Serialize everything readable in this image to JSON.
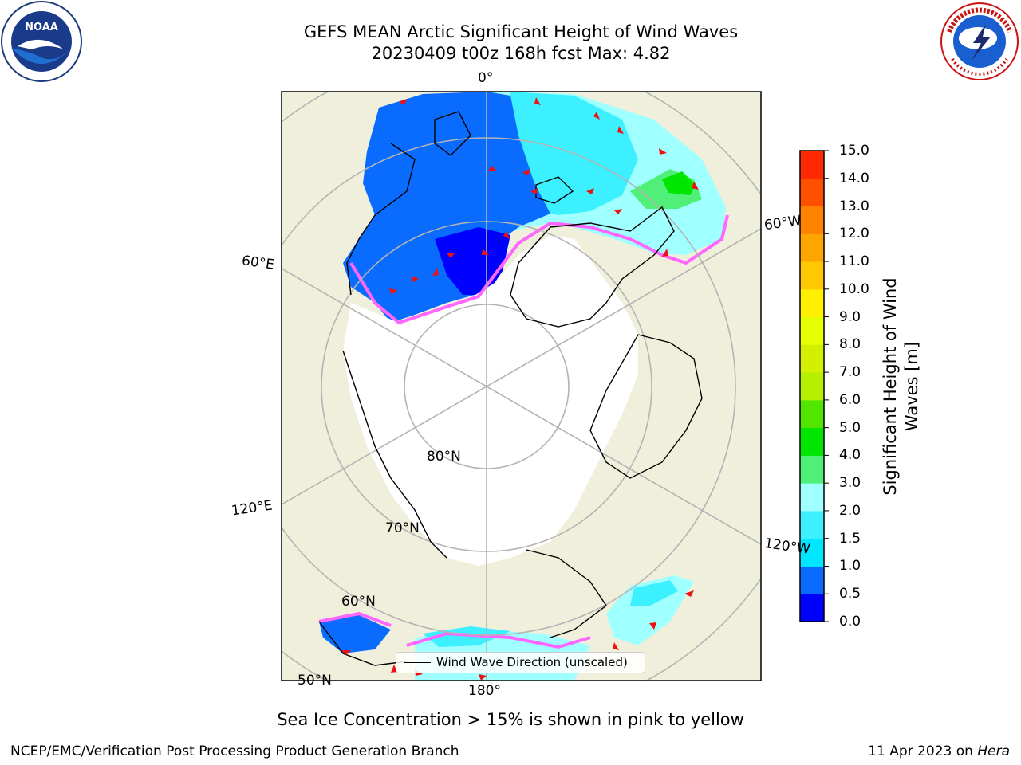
{
  "title": {
    "line1": "GEFS MEAN Arctic Significant Height of Wind Waves",
    "line2": "20230409 t00z 168h fcst   Max: 4.82"
  },
  "map": {
    "projection": "north-polar-stereographic",
    "land_color": "#efefdc",
    "ocean_no_data_color": "#ffffff",
    "gridline_color": "#b4b4b4",
    "coastline_color": "#000000",
    "ice_edge_colors": [
      "#ff66ff",
      "#ff9933",
      "#ffcc00"
    ],
    "arrow_color": "#ee1111",
    "graticule_labels": {
      "lon_0": "0°",
      "lon_60e": "60°E",
      "lon_60w": "60°W",
      "lon_120e": "120°E",
      "lon_120w": "120°W",
      "lon_180": "180°",
      "lat_80": "80°N",
      "lat_70": "70°N",
      "lat_60": "60°N",
      "lat_50": "50°N"
    }
  },
  "colorbar": {
    "label": "Significant Height of Wind Waves [m]",
    "label_line1": "Significant Height of Wind",
    "label_line2": "Waves [m]",
    "ticks": [
      "0.0",
      "0.5",
      "1.0",
      "1.5",
      "2.0",
      "3.0",
      "4.0",
      "5.0",
      "6.0",
      "7.0",
      "8.0",
      "9.0",
      "10.0",
      "11.0",
      "12.0",
      "13.0",
      "14.0",
      "15.0"
    ],
    "colors": [
      "#0000ff",
      "#0a6cff",
      "#00e6ff",
      "#3cf0ff",
      "#a0ffff",
      "#50f078",
      "#00e600",
      "#50e600",
      "#b4f000",
      "#d2f000",
      "#e6ff00",
      "#fff000",
      "#ffc800",
      "#ffa500",
      "#ff8200",
      "#ff5000",
      "#ff2800"
    ]
  },
  "legend": {
    "label": "Wind Wave Direction (unscaled)"
  },
  "subtitle": "Sea Ice Concentration > 15% is shown in pink to yellow",
  "footer": {
    "left": "NCEP/EMC/Verification Post Processing Product Generation Branch",
    "right_date": "11 Apr 2023 on",
    "right_host": "Hera"
  },
  "logos": {
    "left": "NOAA",
    "right": "NATIONAL WEATHER SERVICE"
  }
}
